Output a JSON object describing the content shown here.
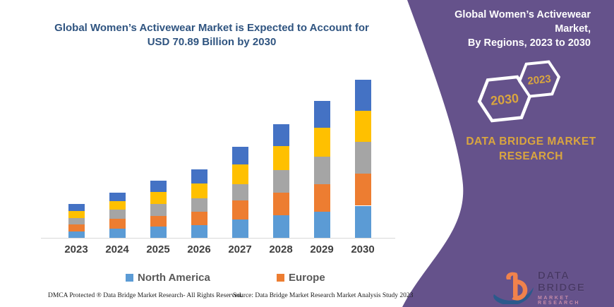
{
  "left": {
    "title_line1": "Global Women’s Activewear Market is Expected to Account for",
    "title_line2": "USD 70.89 Billion by 2030",
    "footer_dmca": "DMCA Protected ® Data Bridge Market Research-  All Rights Reserved.",
    "footer_source": "Source: Data Bridge Market Research  Market Analysis Study 2023"
  },
  "legend": [
    {
      "label": "North America",
      "color": "#5B9BD5"
    },
    {
      "label": "Europe",
      "color": "#ED7D31"
    }
  ],
  "chart_data": {
    "type": "bar",
    "stacked": true,
    "title": "Global Women’s Activewear Market is Expected to Account for USD 70.89 Billion by 2030",
    "unit": "USD billion",
    "categories": [
      "2023",
      "2024",
      "2025",
      "2026",
      "2027",
      "2028",
      "2029",
      "2030"
    ],
    "series": [
      {
        "name": "North America",
        "color": "#5B9BD5",
        "values": [
          2.8,
          4.1,
          5.2,
          5.6,
          8.2,
          10.0,
          11.8,
          14.4
        ]
      },
      {
        "name": "Europe",
        "color": "#ED7D31",
        "values": [
          3.2,
          4.5,
          4.5,
          6.1,
          8.5,
          10.4,
          12.2,
          14.5
        ]
      },
      {
        "name": "unlabeled-gray",
        "color": "#A5A5A5",
        "values": [
          2.8,
          4.0,
          5.5,
          6.1,
          7.4,
          9.9,
          12.3,
          14.3
        ]
      },
      {
        "name": "unlabeled-yellow",
        "color": "#FFC000",
        "values": [
          3.2,
          3.8,
          5.4,
          6.6,
          8.8,
          10.8,
          13.1,
          13.9
        ]
      },
      {
        "name": "unlabeled-darkblue",
        "color": "#4472C4",
        "values": [
          3.2,
          3.9,
          4.9,
          6.2,
          7.9,
          9.8,
          11.9,
          13.7
        ]
      }
    ],
    "totals": [
      15.2,
      20.3,
      25.5,
      30.6,
      40.8,
      51.0,
      61.4,
      70.9
    ],
    "ylim": [
      0,
      75
    ],
    "grid": false,
    "x_axis_labels_bold": true,
    "legend_position": "bottom",
    "legend_visible_entries": [
      "North America",
      "Europe"
    ]
  },
  "panel": {
    "title_line1": "Global Women’s Activewear Market,",
    "title_line2": "By Regions, 2023 to 2030",
    "hexagons": [
      "2030",
      "2023"
    ],
    "brand_line1": "DATA BRIDGE MARKET",
    "brand_line2": "RESEARCH",
    "logo_name": "DATA BRIDGE",
    "logo_sub": "MARKET RESEARCH",
    "colors": {
      "panel_purple": "#65528B",
      "accent_gold": "#D9A53F",
      "logo_orange": "#F0824C",
      "logo_blue": "#2B5A8C",
      "title_blue": "#2F5480"
    }
  }
}
